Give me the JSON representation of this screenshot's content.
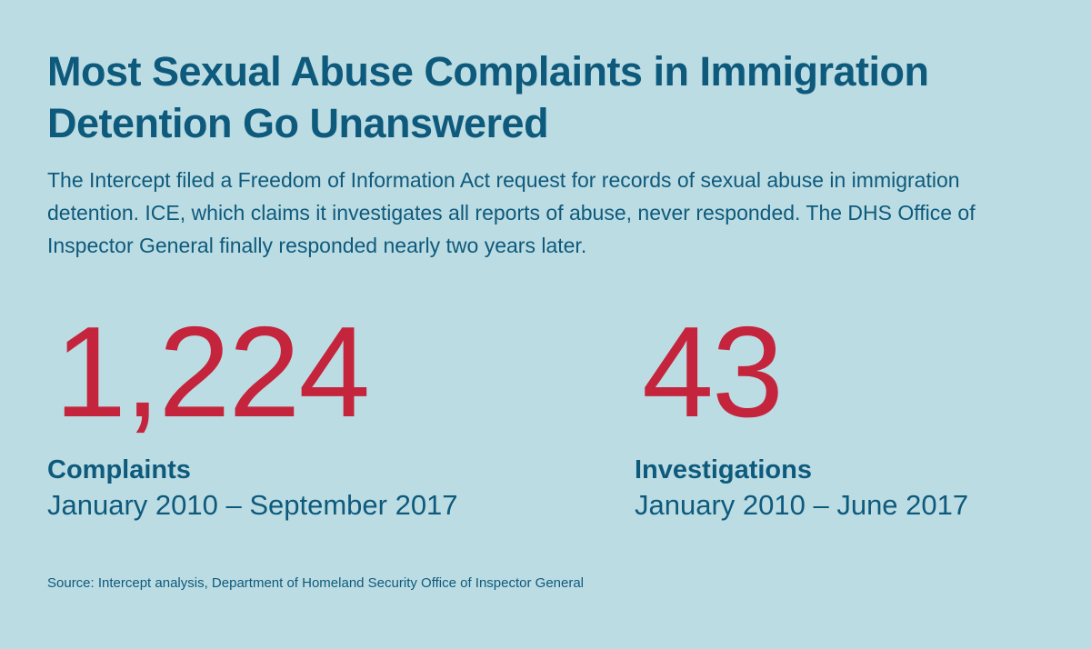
{
  "title": "Most Sexual Abuse Complaints in Immigration Detention Go Unanswered",
  "subtitle": "The Intercept filed a Freedom of Information Act request for records of sexual abuse in immigration detention. ICE, which claims it investigates all reports of abuse, never responded. The DHS Office of Inspector General finally responded nearly two years later.",
  "stats": [
    {
      "value": "1,224",
      "label": "Complaints",
      "range": "January 2010 – September 2017"
    },
    {
      "value": "43",
      "label": "Investigations",
      "range": "January 2010 – June 2017"
    }
  ],
  "source": "Source: Intercept analysis, Department of Homeland Security Office of Inspector General",
  "colors": {
    "background": "#bcdce3",
    "text": "#0e5a7c",
    "accent": "#c4253d"
  }
}
